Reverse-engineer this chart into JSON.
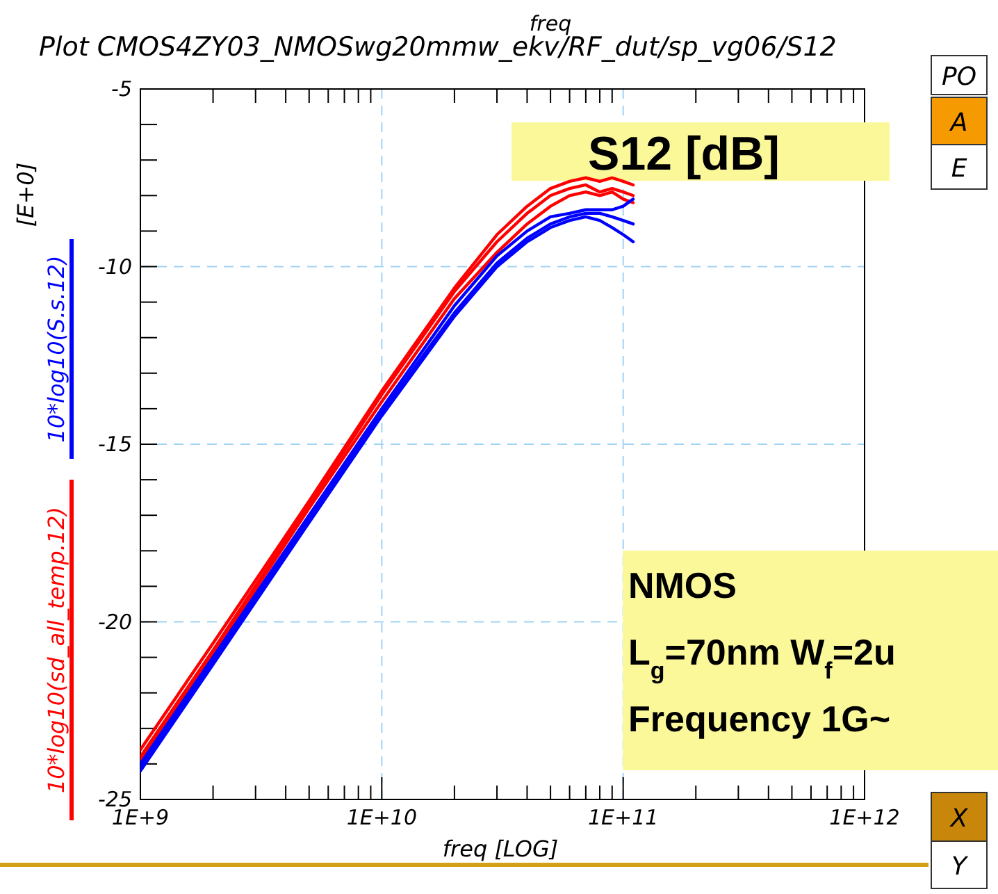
{
  "chart_data": {
    "type": "line",
    "title": "Plot CMOS4ZY03_NMOSwg20mmw_ekv/RF_dut/sp_vg06/S12",
    "subtitle": "freq",
    "xlabel": "freq  [LOG]",
    "ylabel": "[E+0]",
    "log": "x",
    "grid": true,
    "legend": "left",
    "line_style": "solid",
    "marker": "none",
    "xlim": [
      1000000000,
      1000000000000
    ],
    "xticks": [
      {
        "value": 1000000000,
        "label": "1E+9"
      },
      {
        "value": 10000000000,
        "label": "1E+10"
      },
      {
        "value": 100000000000,
        "label": "1E+11"
      },
      {
        "value": 1000000000000,
        "label": "1E+12"
      }
    ],
    "ylim": [
      -25,
      -5
    ],
    "yticks": [
      -25,
      -20,
      -15,
      -10,
      -5
    ],
    "x": [
      1000000000,
      2000000000,
      5000000000,
      10000000000,
      20000000000,
      30000000000,
      40000000000,
      50000000000,
      60000000000,
      70000000000,
      80000000000,
      90000000000,
      100000000000,
      110000000000
    ],
    "series": [
      {
        "name": "10*log10(sd_all_temp.12)",
        "color": "#ff0000",
        "values": [
          -23.8,
          -20.8,
          -16.7,
          -13.6,
          -10.7,
          -9.3,
          -8.5,
          -8.0,
          -7.8,
          -7.7,
          -7.9,
          -7.8,
          -7.9,
          -8.0
        ]
      },
      {
        "color": "#ff0000",
        "values": [
          -23.6,
          -20.6,
          -16.6,
          -13.5,
          -10.6,
          -9.1,
          -8.3,
          -7.8,
          -7.6,
          -7.5,
          -7.6,
          -7.5,
          -7.6,
          -7.7
        ]
      },
      {
        "color": "#ff0000",
        "values": [
          -23.9,
          -20.9,
          -16.8,
          -13.8,
          -10.9,
          -9.6,
          -8.8,
          -8.3,
          -8.0,
          -7.9,
          -8.0,
          -7.9,
          -8.1,
          -8.2
        ]
      },
      {
        "name": "10*log10(S.s.12)",
        "color": "#0000ff",
        "values": [
          -24.1,
          -21.1,
          -17.1,
          -14.1,
          -11.3,
          -9.9,
          -9.2,
          -8.8,
          -8.6,
          -8.5,
          -8.5,
          -8.6,
          -8.7,
          -8.8
        ]
      },
      {
        "color": "#0000ff",
        "values": [
          -24.0,
          -21.0,
          -17.0,
          -14.0,
          -11.1,
          -9.7,
          -9.0,
          -8.6,
          -8.5,
          -8.4,
          -8.4,
          -8.4,
          -8.3,
          -8.1
        ]
      },
      {
        "color": "#0000ff",
        "values": [
          -24.2,
          -21.2,
          -17.2,
          -14.2,
          -11.4,
          -10.0,
          -9.3,
          -8.9,
          -8.7,
          -8.6,
          -8.7,
          -8.9,
          -9.1,
          -9.3
        ]
      }
    ],
    "annotations": [
      "S12 [dB]",
      "NMOS",
      "L$_{g}$=70nm W$_{f}$=2u",
      "Frequency 1G~",
      "PO",
      "A",
      "E",
      "X",
      "Y"
    ]
  }
}
